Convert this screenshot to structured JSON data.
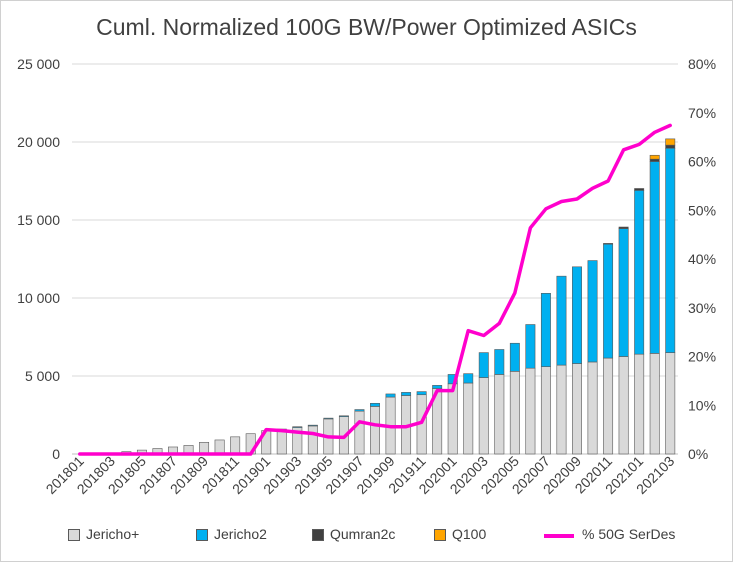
{
  "chart_data": {
    "type": "bar",
    "title": "Cuml. Normalized 100G BW/Power Optimized ASICs",
    "xlabel": "",
    "ylabel": "",
    "stacked": true,
    "categories": [
      "201801",
      "201802",
      "201803",
      "201804",
      "201805",
      "201806",
      "201807",
      "201808",
      "201809",
      "201810",
      "201811",
      "201812",
      "201901",
      "201902",
      "201903",
      "201904",
      "201905",
      "201906",
      "201907",
      "201908",
      "201909",
      "201910",
      "201911",
      "201912",
      "202001",
      "202002",
      "202003",
      "202004",
      "202005",
      "202006",
      "202007",
      "202008",
      "202009",
      "202010",
      "202011",
      "202012",
      "202101",
      "202102",
      "202103"
    ],
    "x_tick_labels": [
      "201801",
      "201803",
      "201805",
      "201807",
      "201809",
      "201811",
      "201901",
      "201903",
      "201905",
      "201907",
      "201909",
      "201911",
      "202001",
      "202003",
      "202005",
      "202007",
      "202009",
      "202011",
      "202101",
      "202103"
    ],
    "ylim": [
      0,
      25000
    ],
    "y_ticks": [
      0,
      5000,
      10000,
      15000,
      20000,
      25000
    ],
    "y_tick_labels": [
      "0",
      "5 000",
      "10 000",
      "15 000",
      "20 000",
      "25 000"
    ],
    "y2lim": [
      0,
      0.8
    ],
    "y2_ticks": [
      0,
      0.1,
      0.2,
      0.3,
      0.4,
      0.5,
      0.6,
      0.7,
      0.8
    ],
    "y2_tick_labels": [
      "0%",
      "10%",
      "20%",
      "30%",
      "40%",
      "50%",
      "60%",
      "70%",
      "80%"
    ],
    "grid": "horizontal",
    "legend_position": "bottom",
    "series": [
      {
        "name": "Jericho+",
        "axis": "left",
        "color": "#d9d9d9",
        "values": [
          0,
          0,
          0,
          150,
          250,
          350,
          450,
          550,
          750,
          900,
          1100,
          1300,
          1500,
          1550,
          1700,
          1800,
          2250,
          2400,
          2750,
          3050,
          3650,
          3750,
          3800,
          4200,
          4500,
          4550,
          4900,
          5100,
          5300,
          5500,
          5600,
          5700,
          5800,
          5900,
          6150,
          6250,
          6400,
          6450,
          6500
        ]
      },
      {
        "name": "Jericho2",
        "axis": "left",
        "color": "#00b0f0",
        "values": [
          0,
          0,
          0,
          0,
          0,
          0,
          0,
          0,
          0,
          0,
          0,
          0,
          0,
          50,
          50,
          50,
          50,
          50,
          100,
          200,
          200,
          200,
          200,
          200,
          600,
          600,
          1600,
          1600,
          1800,
          2800,
          4700,
          5700,
          6200,
          6500,
          7300,
          8200,
          10500,
          12300,
          13100
        ]
      },
      {
        "name": "Qumran2c",
        "axis": "left",
        "color": "#404040",
        "values": [
          0,
          0,
          0,
          0,
          0,
          0,
          0,
          0,
          0,
          0,
          0,
          0,
          0,
          0,
          0,
          0,
          0,
          0,
          0,
          0,
          0,
          0,
          0,
          0,
          0,
          0,
          0,
          0,
          0,
          0,
          0,
          0,
          0,
          0,
          50,
          100,
          120,
          150,
          200
        ]
      },
      {
        "name": "Q100",
        "axis": "left",
        "color": "#ffa500",
        "values": [
          0,
          0,
          0,
          0,
          0,
          0,
          0,
          0,
          0,
          0,
          0,
          0,
          0,
          0,
          0,
          0,
          0,
          0,
          0,
          0,
          0,
          0,
          0,
          0,
          0,
          0,
          0,
          0,
          0,
          0,
          0,
          0,
          0,
          0,
          0,
          0,
          0,
          250,
          400
        ]
      },
      {
        "name": "% 50G SerDes",
        "axis": "right",
        "type": "line",
        "color": "#ff00cc",
        "values": [
          0,
          0,
          0,
          0,
          0,
          0,
          0,
          0,
          0,
          0,
          0,
          0,
          0.05,
          0.048,
          0.045,
          0.042,
          0.035,
          0.034,
          0.066,
          0.06,
          0.056,
          0.056,
          0.065,
          0.13,
          0.13,
          0.253,
          0.243,
          0.268,
          0.33,
          0.464,
          0.503,
          0.518,
          0.523,
          0.545,
          0.56,
          0.624,
          0.635,
          0.66,
          0.674
        ]
      }
    ]
  }
}
